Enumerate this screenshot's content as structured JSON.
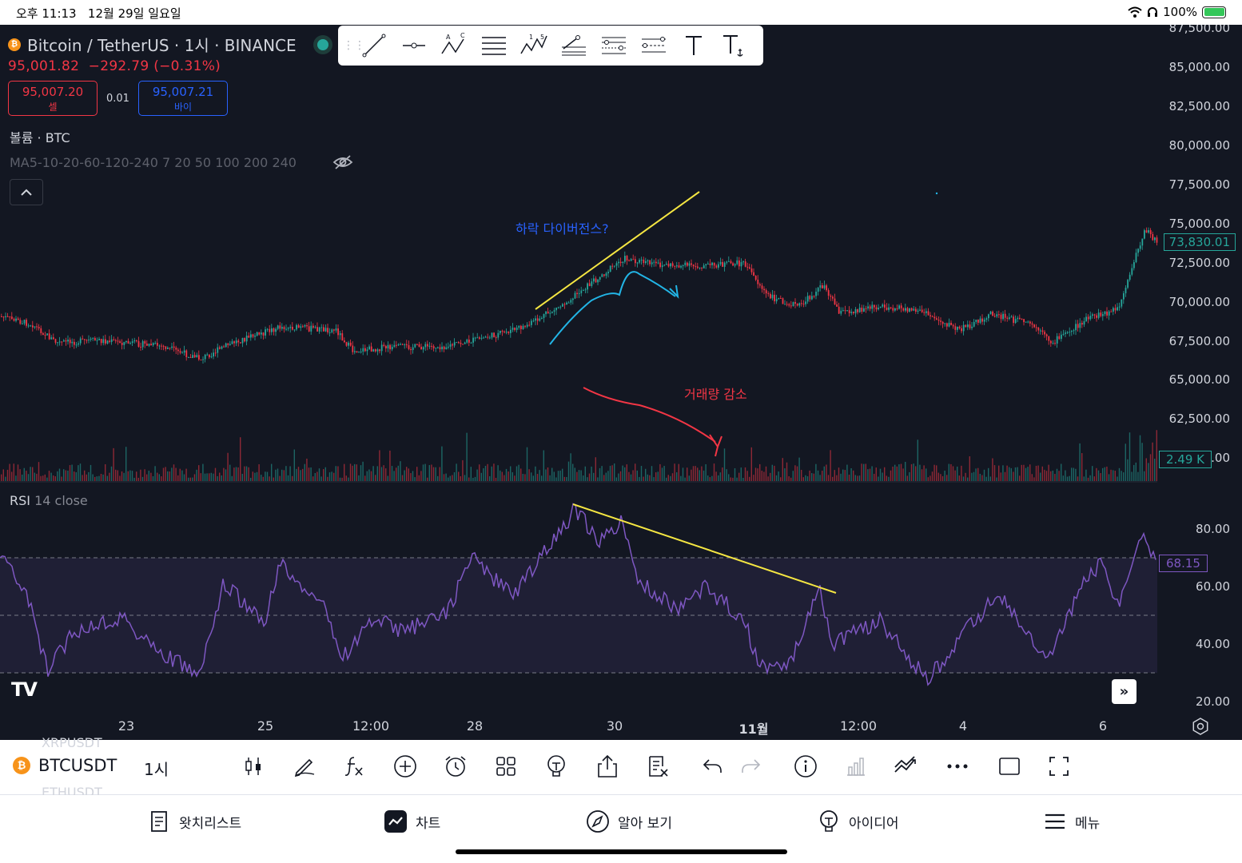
{
  "status_bar": {
    "time": "오후 11:13",
    "date": "12월 29일 일요일",
    "battery": "100%"
  },
  "header": {
    "symbol_title": "Bitcoin / TetherUS · 1시 · BINANCE",
    "last_price": "95,001.82",
    "change": "−292.79 (−0.31%)",
    "sell_price": "95,007.20",
    "sell_label": "셀",
    "spread": "0.01",
    "buy_price": "95,007.21",
    "buy_label": "바이"
  },
  "indicators": {
    "volume_label": "볼륨 · BTC",
    "ma_label": "MA5-10-20-60-120-240 7 20 50 100 200 240",
    "rsi_name": "RSI",
    "rsi_params": "14 close"
  },
  "drawing_toolbar": {
    "tools": [
      "trend-line-icon",
      "horizontal-ray-icon",
      "abcd-pattern-icon",
      "parallel-channel-icon",
      "elliott-wave-icon",
      "fib-retracement-icon",
      "fib-extension-icon",
      "pitchfork-icon",
      "text-icon",
      "anchored-text-icon"
    ]
  },
  "annotations": {
    "blue_text": "하락 다이버전스?",
    "red_text": "거래량 감소"
  },
  "price_axis": {
    "labels": [
      "87,500.00",
      "85,000.00",
      "82,500.00",
      "80,000.00",
      "77,500.00",
      "75,000.00",
      "72,500.00",
      "70,000.00",
      "67,500.00",
      "65,000.00",
      "62,500.00",
      ".00"
    ],
    "current_price": "73,830.01",
    "volume_value": "2.49 K"
  },
  "rsi_axis": {
    "labels": [
      "80.00",
      "60.00",
      "40.00",
      "20.00"
    ],
    "current": "68.15"
  },
  "time_axis": {
    "labels": [
      "23",
      "25",
      "12:00",
      "28",
      "30",
      "11월",
      "12:00",
      "4",
      "6"
    ]
  },
  "bottom_toolbar": {
    "faded_top": "XRPUSDT",
    "symbol": "BTCUSDT",
    "faded_bottom": "ETHUSDT",
    "interval": "1시"
  },
  "tab_bar": {
    "tabs": [
      {
        "label": "왓치리스트",
        "icon": "watchlist-icon"
      },
      {
        "label": "차트",
        "icon": "chart-icon"
      },
      {
        "label": "알아 보기",
        "icon": "compass-icon"
      },
      {
        "label": "아이디어",
        "icon": "idea-icon"
      },
      {
        "label": "메뉴",
        "icon": "menu-icon"
      }
    ]
  },
  "colors": {
    "background": "#131722",
    "up": "#26a69a",
    "down": "#f23645",
    "rsi": "#7e57c2",
    "trendline": "#f5e642",
    "annotation_blue": "#2962ff",
    "annotation_cyan": "#22b5e6"
  }
}
